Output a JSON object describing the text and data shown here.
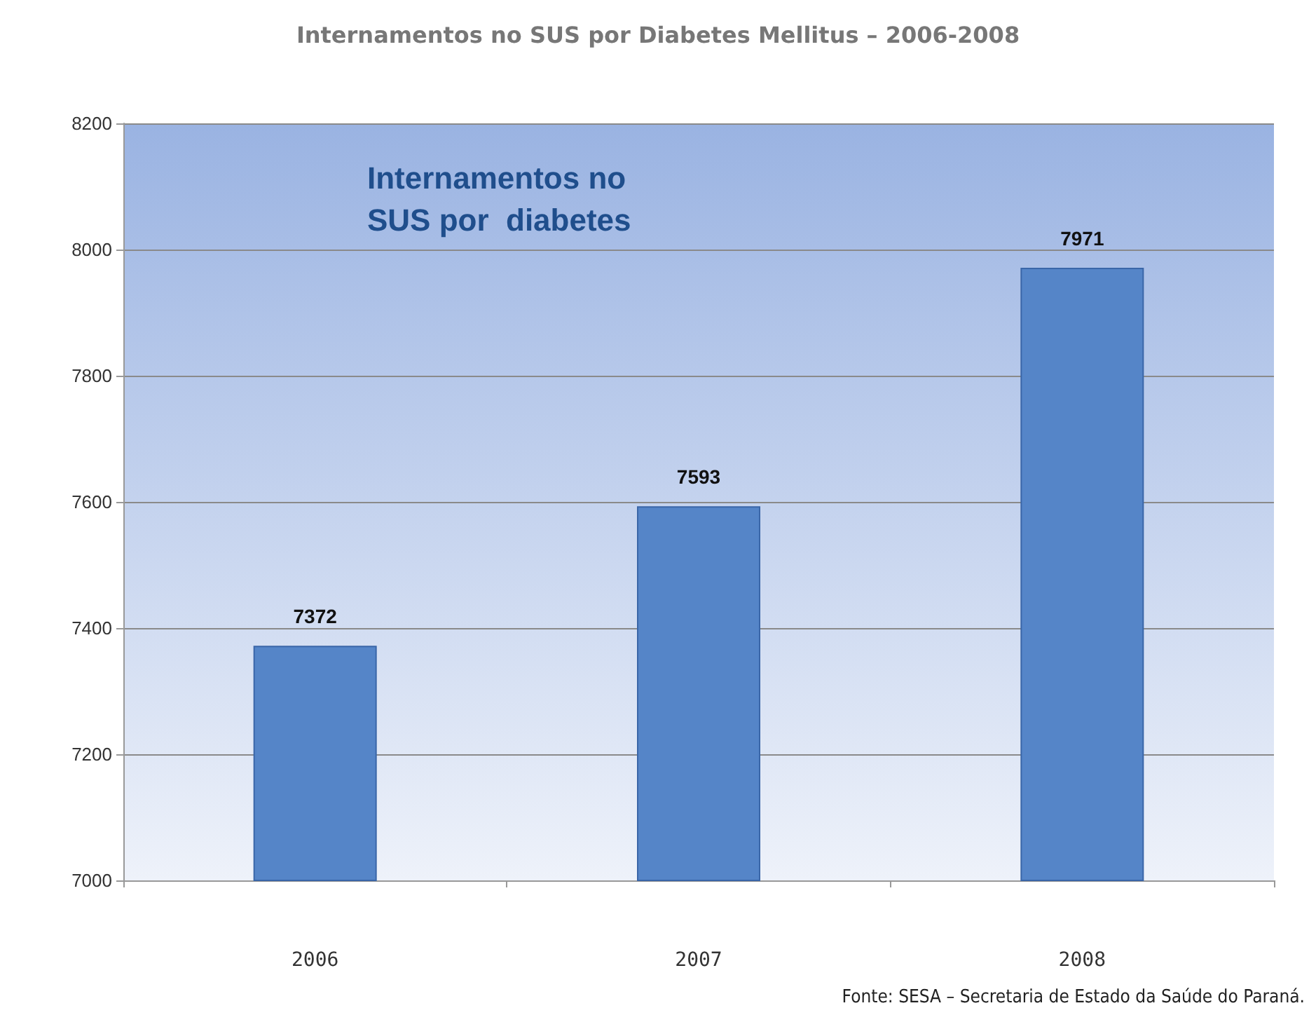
{
  "chart_data": {
    "type": "bar",
    "title": "Internamentos no SUS por Diabetes Mellitus – 2006-2008",
    "categories": [
      "2006",
      "2007",
      "2008"
    ],
    "values": [
      7372,
      7593,
      7971
    ],
    "color": "#5585c8",
    "data_labels": true,
    "ylim": [
      7000,
      8200
    ],
    "yticks": [
      7000,
      7200,
      7400,
      7600,
      7800,
      8000,
      8200
    ],
    "grid": "y",
    "annotations": [
      "Internamentos no\nSUS por  diabetes",
      "Fonte: SESA – Secretaria de Estado da Saúde do Paraná."
    ]
  }
}
